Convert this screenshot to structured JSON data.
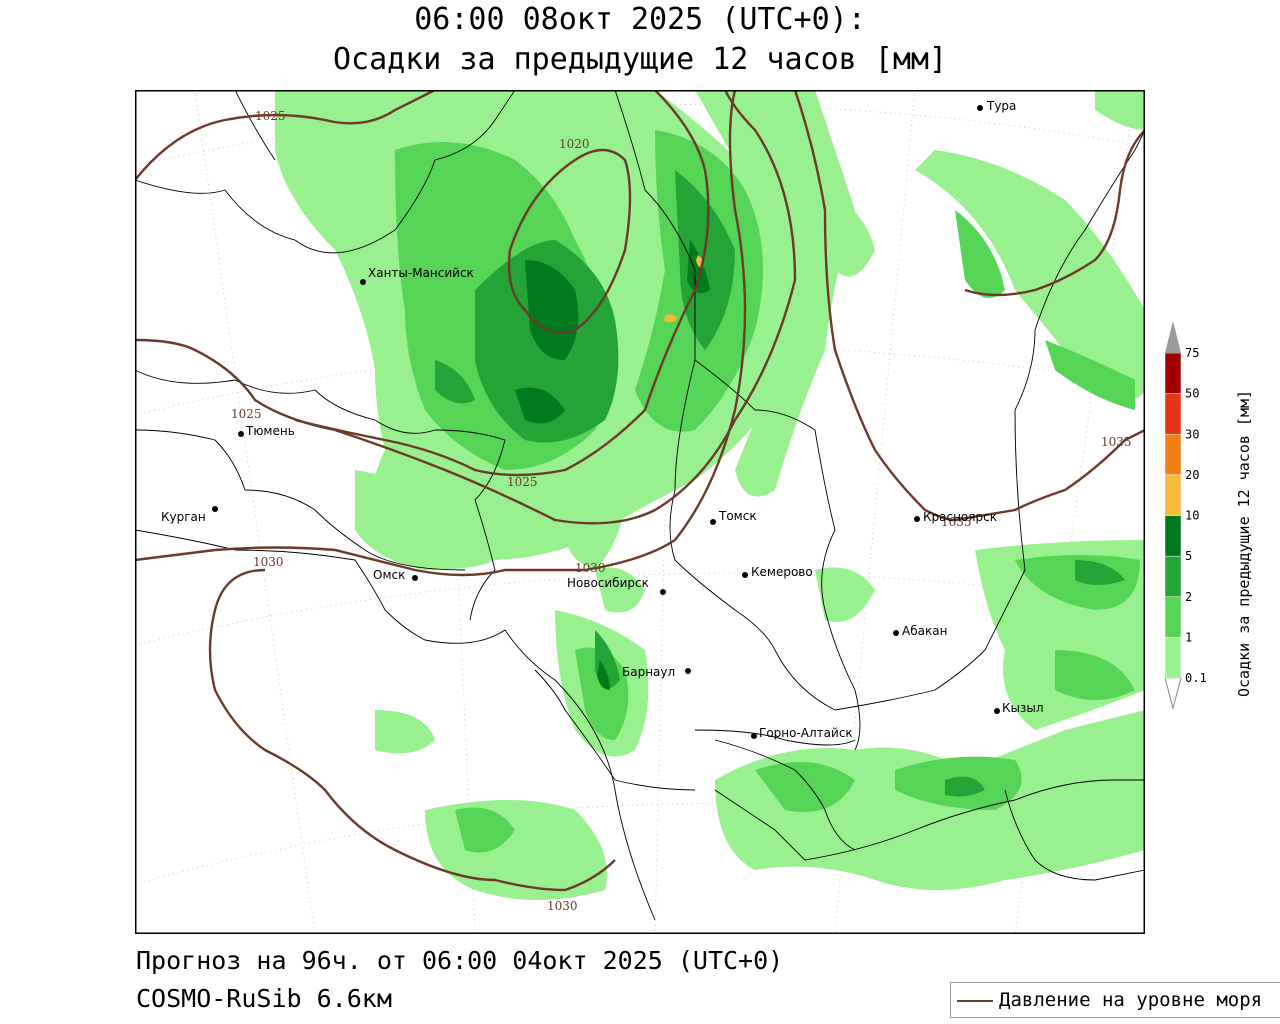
{
  "title_line1": "06:00 08окт 2025 (UTC+0):",
  "title_line2": "Осадки за предыдущие 12 часов [мм]",
  "footer_line1": "Прогноз на 96ч. от 06:00 04окт 2025 (UTC+0)",
  "footer_line2": "COSMO-RuSib 6.6км",
  "legend_label": "Давление на уровне моря",
  "colorbar": {
    "title": "Осадки за предыдущие 12 часов [мм]",
    "levels": [
      "0.1",
      "1",
      "2",
      "5",
      "10",
      "20",
      "30",
      "50",
      "75"
    ],
    "colors": [
      "#98f08f",
      "#55d455",
      "#24a336",
      "#007a1c",
      "#f5b93b",
      "#f37f17",
      "#e43616",
      "#a00000",
      "#9a9a9a"
    ]
  },
  "cities": [
    {
      "name": "Тура"
    },
    {
      "name": "Ханты-Мансийск"
    },
    {
      "name": "Тюмень"
    },
    {
      "name": "Курган"
    },
    {
      "name": "Омск"
    },
    {
      "name": "Томск"
    },
    {
      "name": "Новосибирск"
    },
    {
      "name": "Кемерово"
    },
    {
      "name": "Красноярск"
    },
    {
      "name": "Абакан"
    },
    {
      "name": "Барнаул"
    },
    {
      "name": "Горно-Алтайск"
    },
    {
      "name": "Кызыл"
    }
  ],
  "isobar_labels": [
    "1025",
    "1020",
    "1025",
    "1025",
    "1030",
    "1030",
    "1035",
    "1035",
    "1030"
  ],
  "isobar_color": "#6b3a2a"
}
